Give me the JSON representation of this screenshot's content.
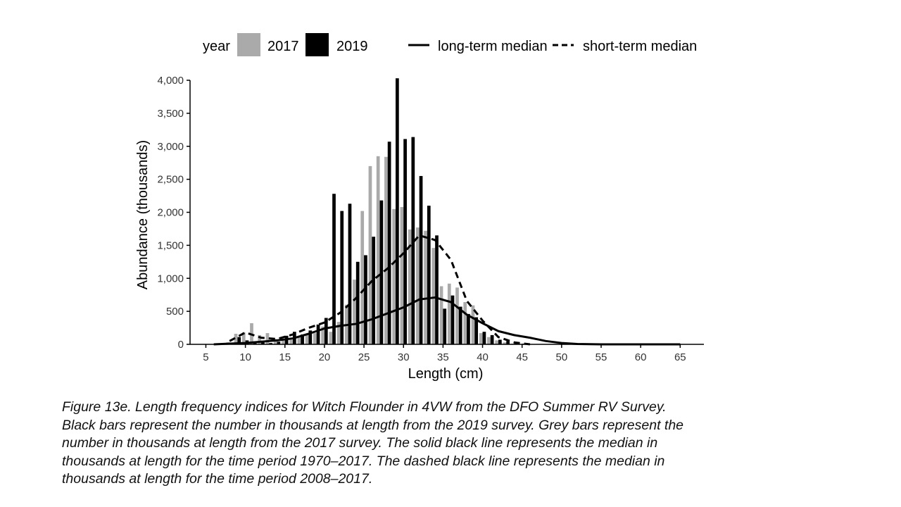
{
  "chart_data": {
    "type": "bar",
    "xlabel": "Length (cm)",
    "ylabel": "Abundance (thousands)",
    "xlim": [
      3,
      68
    ],
    "ylim": [
      0,
      4000
    ],
    "x_ticks": [
      5,
      10,
      15,
      20,
      25,
      30,
      35,
      40,
      45,
      50,
      55,
      60,
      65
    ],
    "y_ticks": [
      0,
      500,
      1000,
      1500,
      2000,
      2500,
      3000,
      3500,
      4000
    ],
    "y_tick_labels": [
      "0",
      "500",
      "1,000",
      "1,500",
      "2,000",
      "2,500",
      "3,000",
      "3,500",
      "4,000"
    ],
    "grid": false,
    "legend": {
      "title": "year",
      "placement": "top",
      "items": [
        {
          "label": "2017",
          "kind": "bar",
          "color": "#aaaaaa"
        },
        {
          "label": "2019",
          "kind": "bar",
          "color": "#000000"
        },
        {
          "label": "long-term median",
          "kind": "line",
          "style": "solid"
        },
        {
          "label": "short-term median",
          "kind": "line",
          "style": "dashed"
        }
      ]
    },
    "series": [
      {
        "name": "2017",
        "color": "#aaaaaa",
        "x": [
          8,
          9,
          10,
          11,
          12,
          13,
          14,
          15,
          16,
          17,
          18,
          19,
          20,
          21,
          22,
          23,
          24,
          25,
          26,
          27,
          28,
          29,
          30,
          31,
          32,
          33,
          34,
          35,
          36,
          37,
          38,
          39,
          40,
          41,
          42,
          43,
          44,
          45
        ],
        "values": [
          30,
          160,
          180,
          320,
          140,
          170,
          80,
          60,
          70,
          120,
          150,
          170,
          270,
          190,
          340,
          600,
          980,
          2020,
          2700,
          2850,
          2840,
          2050,
          2080,
          1740,
          1770,
          1720,
          1460,
          880,
          920,
          860,
          640,
          590,
          170,
          110,
          60,
          30,
          10,
          5
        ]
      },
      {
        "name": "2019",
        "color": "#000000",
        "x": [
          8,
          9,
          10,
          11,
          12,
          13,
          14,
          15,
          16,
          17,
          18,
          19,
          20,
          21,
          22,
          23,
          24,
          25,
          26,
          27,
          28,
          29,
          30,
          31,
          32,
          33,
          34,
          35,
          36,
          37,
          38,
          39,
          40,
          41,
          42,
          43,
          44,
          45
        ],
        "values": [
          10,
          110,
          60,
          20,
          30,
          20,
          40,
          130,
          190,
          150,
          210,
          300,
          400,
          2280,
          2020,
          2130,
          1250,
          1350,
          1630,
          2180,
          3070,
          4030,
          3110,
          3140,
          2550,
          2100,
          1650,
          540,
          740,
          570,
          460,
          410,
          190,
          140,
          70,
          50,
          30,
          10
        ]
      },
      {
        "name": "long-term median",
        "style": "solid",
        "color": "#000000",
        "x": [
          6,
          8,
          10,
          12,
          14,
          16,
          18,
          20,
          22,
          24,
          26,
          28,
          30,
          32,
          34,
          36,
          38,
          40,
          42,
          44,
          46,
          48,
          50,
          52,
          55,
          65
        ],
        "values": [
          0,
          10,
          20,
          40,
          60,
          90,
          160,
          240,
          280,
          310,
          380,
          470,
          560,
          680,
          710,
          640,
          450,
          320,
          200,
          140,
          100,
          50,
          20,
          5,
          0,
          0
        ]
      },
      {
        "name": "short-term median",
        "style": "dashed",
        "color": "#000000",
        "x": [
          8,
          10,
          12,
          14,
          16,
          18,
          20,
          22,
          24,
          26,
          28,
          30,
          32,
          34,
          36,
          38,
          40,
          42,
          44,
          46
        ],
        "values": [
          50,
          180,
          100,
          80,
          150,
          250,
          330,
          480,
          700,
          960,
          1150,
          1380,
          1650,
          1580,
          1280,
          660,
          360,
          110,
          30,
          0
        ]
      }
    ]
  },
  "caption": {
    "lines": [
      "Figure 13e. Length frequency indices for Witch Flounder in 4VW from the DFO Summer RV Survey.",
      "Black bars represent the number in thousands at length from the 2019 survey. Grey bars represent the",
      "number in thousands at length from the 2017 survey. The solid black line represents the median in",
      "thousands at length for the time period 1970–2017. The dashed black line represents the median in",
      "thousands at length for the time period 2008–2017."
    ]
  }
}
